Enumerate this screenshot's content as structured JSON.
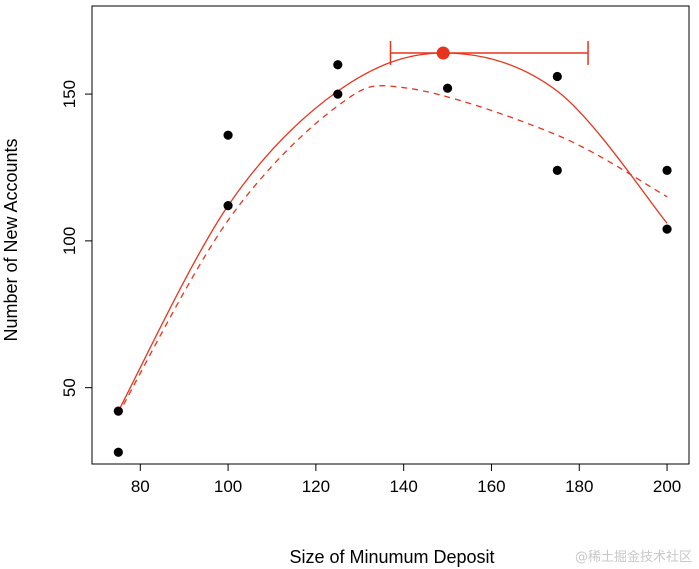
{
  "chart_data": {
    "type": "scatter",
    "title": "",
    "xlabel": "Size of Minumum Deposit",
    "ylabel": "Number of New Accounts",
    "xlim": [
      69,
      205
    ],
    "ylim": [
      24,
      180
    ],
    "x_ticks": [
      80,
      100,
      120,
      140,
      160,
      180,
      200
    ],
    "y_ticks": [
      50,
      100,
      150
    ],
    "grid": false,
    "points": {
      "color": "#000000",
      "x": [
        75,
        75,
        100,
        100,
        125,
        125,
        150,
        175,
        175,
        200,
        200
      ],
      "y": [
        28,
        42,
        112,
        136,
        150,
        160,
        152,
        124,
        156,
        124,
        104
      ]
    },
    "fitted_curve": {
      "style": "solid",
      "color": "#e8341c",
      "x": [
        75,
        100,
        125,
        149,
        175,
        200
      ],
      "y": [
        42,
        112,
        151,
        164,
        151,
        106
      ]
    },
    "dashed_curve": {
      "style": "dashed",
      "color": "#e8341c",
      "x": [
        75,
        100,
        125,
        141,
        175,
        200
      ],
      "y": [
        41,
        107,
        146,
        152,
        136,
        115
      ]
    },
    "optimum": {
      "color": "#e8341c",
      "x": 149,
      "y": 164,
      "interval": [
        137,
        182
      ]
    },
    "watermark": "@稀土掘金技术社区"
  }
}
